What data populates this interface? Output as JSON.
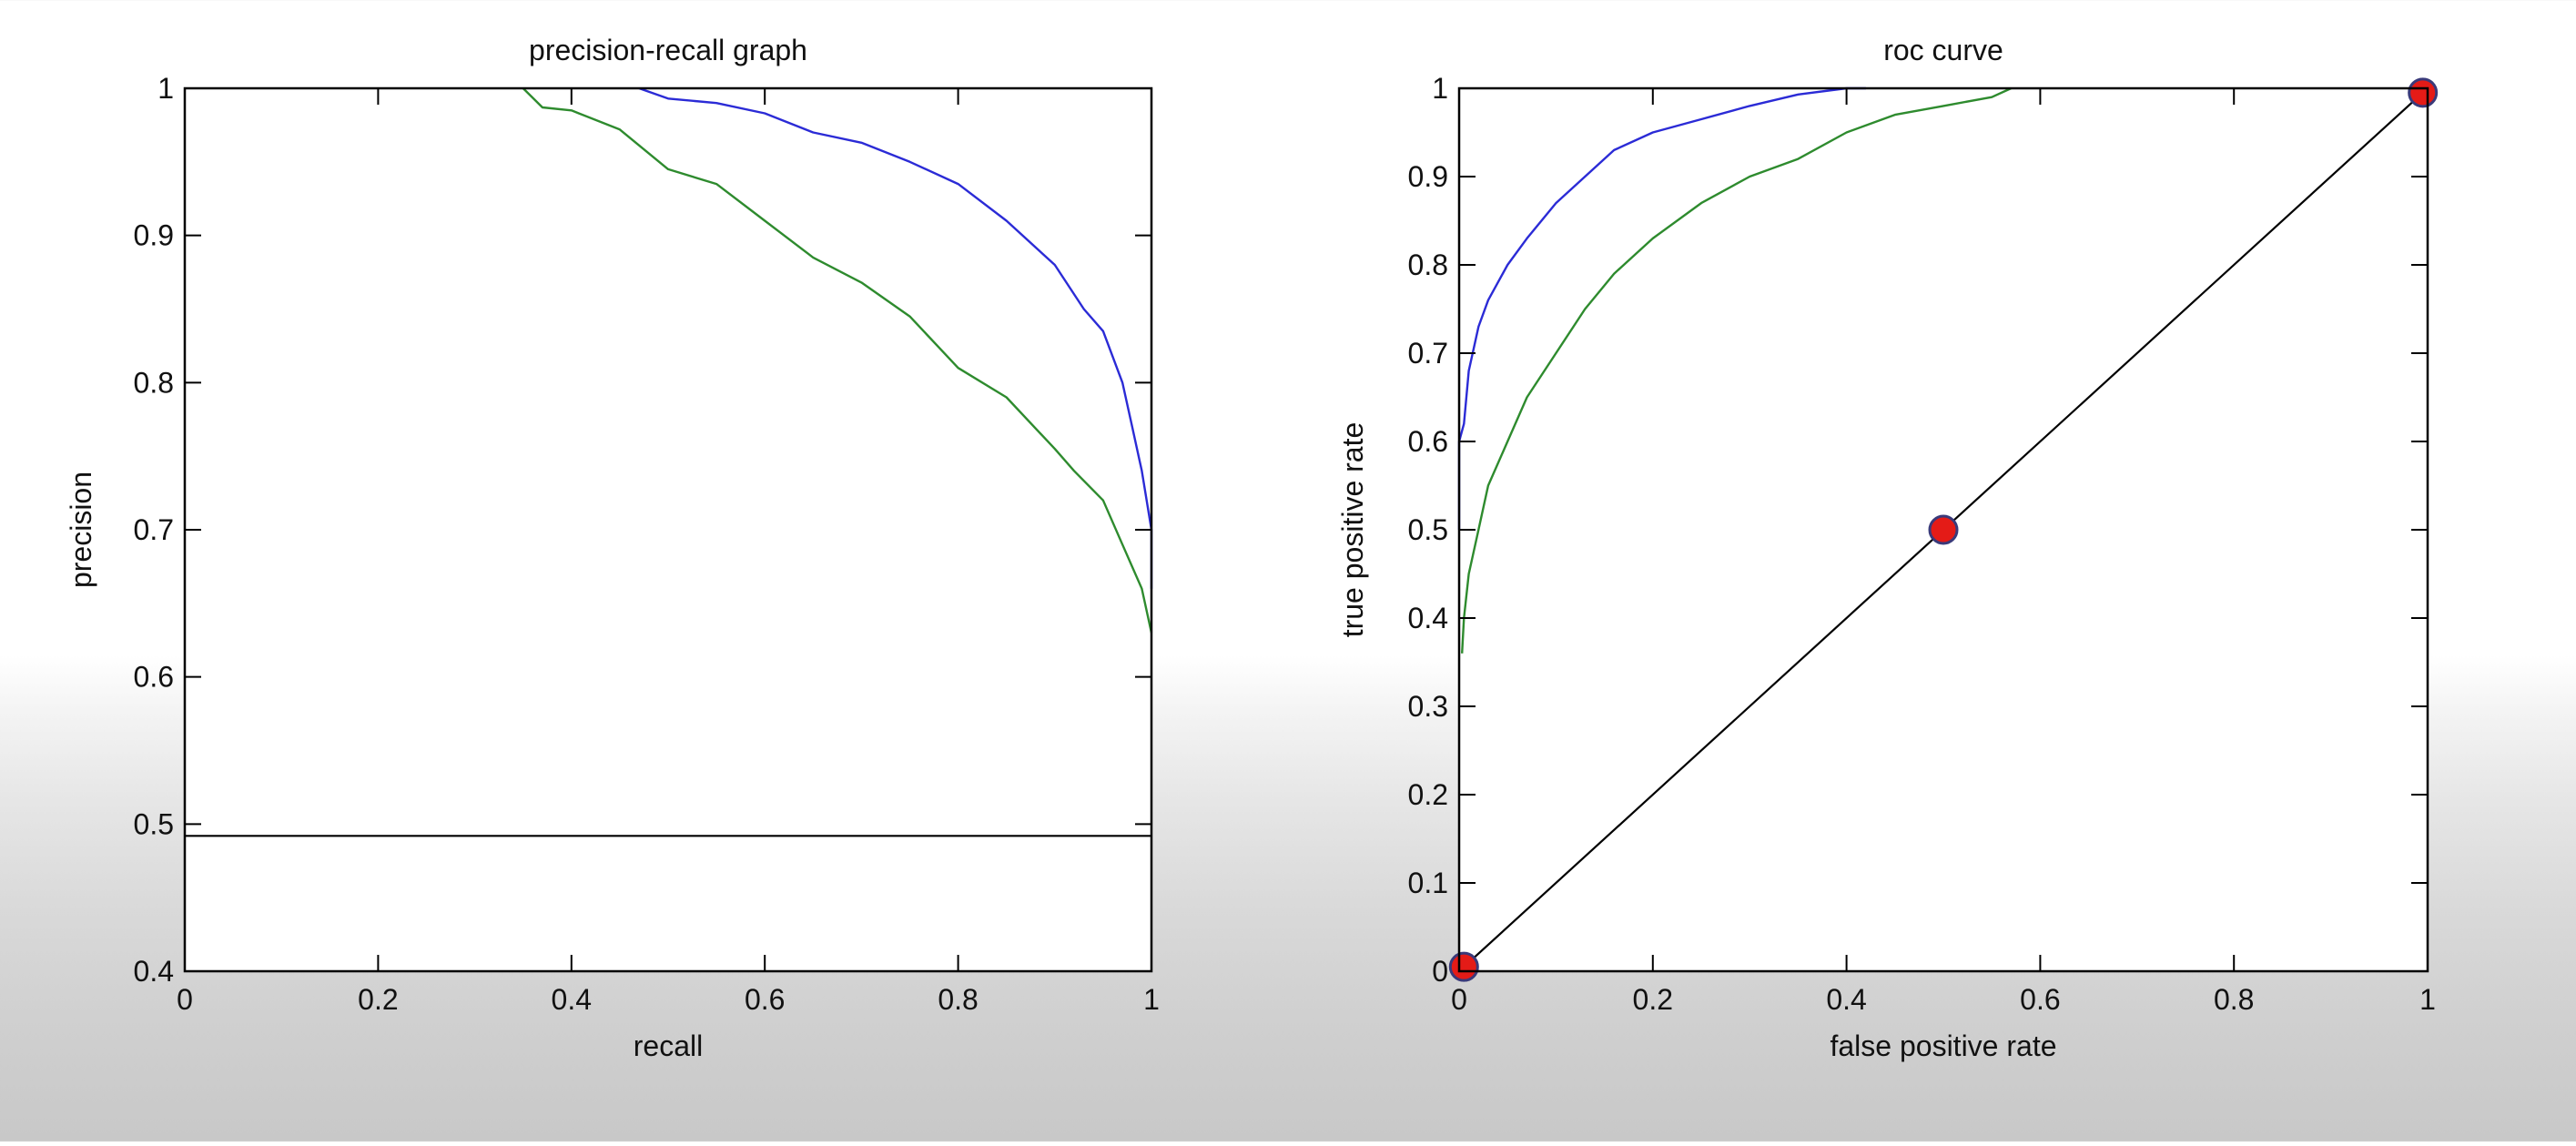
{
  "chart_data": [
    {
      "type": "line",
      "title": "precision-recall graph",
      "xlabel": "recall",
      "ylabel": "precision",
      "xlim": [
        0,
        1
      ],
      "ylim": [
        0.4,
        1
      ],
      "xticks": [
        0,
        0.2,
        0.4,
        0.6,
        0.8,
        1
      ],
      "xtick_labels": [
        "0",
        "0.2",
        "0.4",
        "0.6",
        "0.8",
        "1"
      ],
      "yticks": [
        0.4,
        0.5,
        0.6,
        0.7,
        0.8,
        0.9,
        1
      ],
      "ytick_labels": [
        "0.4",
        "0.5",
        "0.6",
        "0.7",
        "0.8",
        "0.9",
        "1"
      ],
      "grid": false,
      "series": [
        {
          "color": "#2b2bd6",
          "x": [
            0.47,
            0.5,
            0.55,
            0.6,
            0.65,
            0.7,
            0.75,
            0.8,
            0.85,
            0.9,
            0.93,
            0.95,
            0.97,
            0.98,
            0.99,
            1.0,
            1.0
          ],
          "y": [
            1.0,
            0.993,
            0.99,
            0.983,
            0.97,
            0.963,
            0.95,
            0.935,
            0.91,
            0.88,
            0.85,
            0.835,
            0.8,
            0.77,
            0.74,
            0.7,
            0.66
          ]
        },
        {
          "color": "#2e8b2e",
          "x": [
            0.35,
            0.37,
            0.4,
            0.45,
            0.5,
            0.55,
            0.6,
            0.65,
            0.7,
            0.75,
            0.8,
            0.85,
            0.9,
            0.92,
            0.95,
            0.97,
            0.99,
            1.0
          ],
          "y": [
            1.0,
            0.987,
            0.985,
            0.972,
            0.945,
            0.935,
            0.91,
            0.885,
            0.868,
            0.845,
            0.81,
            0.79,
            0.755,
            0.74,
            0.72,
            0.69,
            0.66,
            0.63
          ]
        },
        {
          "color": "#000000",
          "x": [
            0,
            1
          ],
          "y": [
            0.492,
            0.492
          ]
        }
      ]
    },
    {
      "type": "line",
      "title": "roc curve",
      "xlabel": "false positive rate",
      "ylabel": "true positive rate",
      "xlim": [
        0,
        1
      ],
      "ylim": [
        0,
        1
      ],
      "xticks": [
        0,
        0.2,
        0.4,
        0.6,
        0.8,
        1
      ],
      "xtick_labels": [
        "0",
        "0.2",
        "0.4",
        "0.6",
        "0.8",
        "1"
      ],
      "yticks": [
        0,
        0.1,
        0.2,
        0.3,
        0.4,
        0.5,
        0.6,
        0.7,
        0.8,
        0.9,
        1
      ],
      "ytick_labels": [
        "0",
        "0.1",
        "0.2",
        "0.3",
        "0.4",
        "0.5",
        "0.6",
        "0.7",
        "0.8",
        "0.9",
        "1"
      ],
      "grid": false,
      "series": [
        {
          "color": "#2b2bd6",
          "x": [
            0,
            0,
            0.005,
            0.01,
            0.02,
            0.03,
            0.05,
            0.07,
            0.1,
            0.13,
            0.16,
            0.2,
            0.25,
            0.3,
            0.35,
            0.4,
            0.42
          ],
          "y": [
            0.5,
            0.6,
            0.62,
            0.68,
            0.73,
            0.76,
            0.8,
            0.83,
            0.87,
            0.9,
            0.93,
            0.95,
            0.965,
            0.98,
            0.993,
            1.0,
            1.0
          ]
        },
        {
          "color": "#2e8b2e",
          "x": [
            0.003,
            0.005,
            0.01,
            0.02,
            0.03,
            0.05,
            0.07,
            0.1,
            0.13,
            0.16,
            0.2,
            0.25,
            0.3,
            0.35,
            0.4,
            0.45,
            0.5,
            0.55,
            0.57
          ],
          "y": [
            0.36,
            0.4,
            0.45,
            0.5,
            0.55,
            0.6,
            0.65,
            0.7,
            0.75,
            0.79,
            0.83,
            0.87,
            0.9,
            0.92,
            0.95,
            0.97,
            0.98,
            0.99,
            1.0
          ]
        },
        {
          "color": "#000000",
          "x": [
            0,
            1
          ],
          "y": [
            0,
            1
          ]
        }
      ],
      "markers": {
        "color": "#e41b17",
        "x": [
          0.005,
          0.5,
          0.995
        ],
        "y": [
          0.005,
          0.5,
          0.995
        ]
      }
    }
  ]
}
